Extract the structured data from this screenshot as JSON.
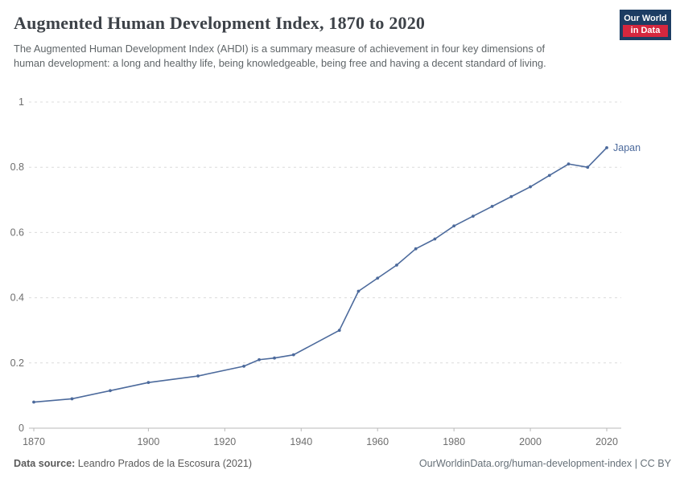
{
  "header": {
    "title": "Augmented Human Development Index, 1870 to 2020",
    "subtitle": "The Augmented Human Development Index (AHDI) is a summary measure of achievement in four key dimensions of human development: a long and healthy life, being knowledgeable, being free and having a decent standard of living.",
    "logo": {
      "line1": "Our World",
      "line2": "in Data"
    }
  },
  "colors": {
    "series_line": "#4c6a9c",
    "logo_bg": "#1d3d63",
    "logo_accent": "#d5273e",
    "gridline": "#dcdcdc",
    "axis": "#b9b9b9",
    "tick_text": "#6e6e6e"
  },
  "chart_data": {
    "type": "line",
    "title": "Augmented Human Development Index, 1870 to 2020",
    "xlabel": "",
    "ylabel": "",
    "x_range": [
      1870,
      2020
    ],
    "ylim": [
      0,
      1
    ],
    "x_ticks": [
      1870,
      1900,
      1920,
      1940,
      1960,
      1980,
      2000,
      2020
    ],
    "y_ticks": [
      0,
      0.2,
      0.4,
      0.6,
      0.8,
      1
    ],
    "grid": "horizontal-dashed",
    "legend_position": "end-of-line-label",
    "series": [
      {
        "name": "Japan",
        "color": "#4c6a9c",
        "points": [
          [
            1870,
            0.08
          ],
          [
            1880,
            0.09
          ],
          [
            1890,
            0.115
          ],
          [
            1900,
            0.14
          ],
          [
            1913,
            0.16
          ],
          [
            1925,
            0.19
          ],
          [
            1929,
            0.21
          ],
          [
            1933,
            0.215
          ],
          [
            1938,
            0.225
          ],
          [
            1950,
            0.3
          ],
          [
            1955,
            0.42
          ],
          [
            1960,
            0.46
          ],
          [
            1965,
            0.5
          ],
          [
            1970,
            0.55
          ],
          [
            1975,
            0.58
          ],
          [
            1980,
            0.62
          ],
          [
            1985,
            0.65
          ],
          [
            1990,
            0.68
          ],
          [
            1995,
            0.71
          ],
          [
            2000,
            0.74
          ],
          [
            2005,
            0.775
          ],
          [
            2010,
            0.81
          ],
          [
            2015,
            0.8
          ],
          [
            2020,
            0.86
          ]
        ]
      }
    ]
  },
  "footer": {
    "source_label": "Data source:",
    "source_text": "Leandro Prados de la Escosura (2021)",
    "right_text": "OurWorldinData.org/human-development-index | CC BY"
  }
}
